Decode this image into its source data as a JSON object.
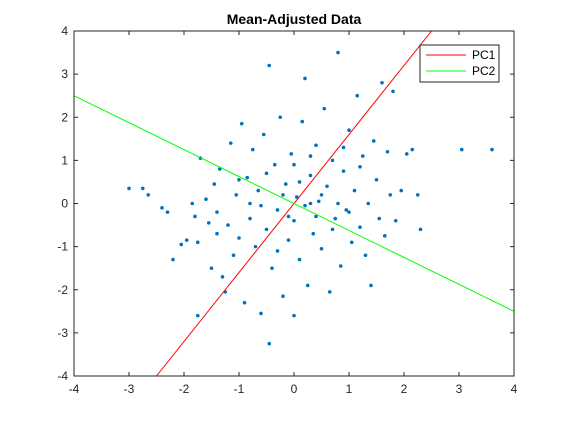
{
  "chart_data": {
    "type": "scatter",
    "title": "Mean-Adjusted Data",
    "xlabel": "",
    "ylabel": "",
    "xlim": [
      -4,
      4
    ],
    "ylim": [
      -4,
      4
    ],
    "xticks": [
      -4,
      -3,
      -2,
      -1,
      0,
      1,
      2,
      3,
      4
    ],
    "yticks": [
      -4,
      -3,
      -2,
      -1,
      0,
      1,
      2,
      3,
      4
    ],
    "xtick_labels": [
      "-4",
      "-3",
      "-2",
      "-1",
      "0",
      "1",
      "2",
      "3",
      "4"
    ],
    "ytick_labels": [
      "-4",
      "-3",
      "-2",
      "-1",
      "0",
      "1",
      "2",
      "3",
      "4"
    ],
    "grid": false,
    "legend": {
      "position": "top-right",
      "entries": [
        "PC1",
        "PC2"
      ]
    },
    "series": [
      {
        "kind": "points",
        "color": "#0072BD",
        "points": [
          [
            -3.0,
            0.35
          ],
          [
            -2.75,
            0.35
          ],
          [
            -2.65,
            0.2
          ],
          [
            -2.4,
            -0.1
          ],
          [
            -2.3,
            -0.2
          ],
          [
            -2.2,
            -1.3
          ],
          [
            -2.05,
            -0.95
          ],
          [
            -1.95,
            -0.85
          ],
          [
            -1.85,
            0.0
          ],
          [
            -1.8,
            -0.3
          ],
          [
            -1.75,
            -0.9
          ],
          [
            -1.75,
            -2.6
          ],
          [
            -1.7,
            1.05
          ],
          [
            -1.6,
            0.1
          ],
          [
            -1.55,
            -0.45
          ],
          [
            -1.5,
            -1.5
          ],
          [
            -1.45,
            0.45
          ],
          [
            -1.4,
            -0.2
          ],
          [
            -1.35,
            0.8
          ],
          [
            -1.3,
            -1.7
          ],
          [
            -1.25,
            -2.05
          ],
          [
            -1.2,
            -0.5
          ],
          [
            -1.15,
            1.4
          ],
          [
            -1.1,
            -1.2
          ],
          [
            -1.05,
            0.2
          ],
          [
            -1.0,
            -0.8
          ],
          [
            -0.95,
            1.85
          ],
          [
            -0.9,
            -2.3
          ],
          [
            -0.85,
            0.6
          ],
          [
            -0.8,
            -0.35
          ],
          [
            -0.75,
            1.25
          ],
          [
            -0.7,
            -1.0
          ],
          [
            -0.65,
            0.3
          ],
          [
            -0.6,
            -2.55
          ],
          [
            -0.55,
            1.6
          ],
          [
            -0.5,
            -0.6
          ],
          [
            -0.45,
            3.2
          ],
          [
            -0.45,
            -3.25
          ],
          [
            -0.4,
            -1.5
          ],
          [
            -0.35,
            0.9
          ],
          [
            -0.3,
            -0.15
          ],
          [
            -0.25,
            2.0
          ],
          [
            -0.2,
            -2.15
          ],
          [
            -0.15,
            0.45
          ],
          [
            -0.1,
            -0.85
          ],
          [
            -0.05,
            1.15
          ],
          [
            0.0,
            -0.4
          ],
          [
            0.0,
            -2.6
          ],
          [
            0.05,
            0.15
          ],
          [
            0.1,
            -1.3
          ],
          [
            0.15,
            1.9
          ],
          [
            0.2,
            -0.05
          ],
          [
            0.2,
            2.9
          ],
          [
            0.25,
            -1.9
          ],
          [
            0.3,
            0.65
          ],
          [
            0.35,
            -0.7
          ],
          [
            0.4,
            1.35
          ],
          [
            0.45,
            0.05
          ],
          [
            0.5,
            -1.05
          ],
          [
            0.55,
            2.2
          ],
          [
            0.6,
            0.4
          ],
          [
            0.65,
            -2.05
          ],
          [
            0.7,
            1.0
          ],
          [
            0.75,
            -0.35
          ],
          [
            0.8,
            3.5
          ],
          [
            0.85,
            -1.45
          ],
          [
            0.9,
            0.75
          ],
          [
            0.95,
            -0.15
          ],
          [
            1.0,
            1.7
          ],
          [
            1.05,
            -0.9
          ],
          [
            1.1,
            0.3
          ],
          [
            1.15,
            2.5
          ],
          [
            1.2,
            -0.55
          ],
          [
            1.25,
            1.1
          ],
          [
            1.3,
            -1.2
          ],
          [
            1.35,
            0.0
          ],
          [
            1.4,
            -1.9
          ],
          [
            1.45,
            1.45
          ],
          [
            1.5,
            0.55
          ],
          [
            1.55,
            -0.35
          ],
          [
            1.6,
            2.8
          ],
          [
            1.65,
            -0.75
          ],
          [
            1.7,
            1.2
          ],
          [
            1.75,
            0.2
          ],
          [
            1.8,
            2.6
          ],
          [
            1.85,
            -0.4
          ],
          [
            1.95,
            0.3
          ],
          [
            2.05,
            1.15
          ],
          [
            2.15,
            1.25
          ],
          [
            2.25,
            0.2
          ],
          [
            2.3,
            -0.6
          ],
          [
            3.05,
            1.25
          ],
          [
            3.6,
            1.25
          ],
          [
            0.3,
            0.0
          ],
          [
            -0.2,
            0.2
          ],
          [
            0.1,
            0.5
          ],
          [
            -0.6,
            -0.05
          ],
          [
            0.7,
            -0.6
          ],
          [
            0.4,
            -0.3
          ],
          [
            -1.0,
            0.55
          ],
          [
            1.2,
            0.85
          ],
          [
            -0.3,
            -1.1
          ],
          [
            0.9,
            1.3
          ],
          [
            -1.4,
            -0.7
          ],
          [
            0.0,
            0.9
          ],
          [
            0.5,
            0.2
          ],
          [
            -0.8,
            0.0
          ],
          [
            1.0,
            -0.2
          ],
          [
            -0.1,
            -0.3
          ],
          [
            0.3,
            1.1
          ],
          [
            -0.5,
            0.7
          ],
          [
            0.8,
            0.0
          ]
        ]
      },
      {
        "kind": "line",
        "name": "PC1",
        "color": "#FF0000",
        "x": [
          -2.5,
          2.5
        ],
        "y": [
          -4.0,
          4.0
        ]
      },
      {
        "kind": "line",
        "name": "PC2",
        "color": "#00FF00",
        "x": [
          -4.0,
          4.0
        ],
        "y": [
          2.5,
          -2.5
        ]
      }
    ]
  }
}
